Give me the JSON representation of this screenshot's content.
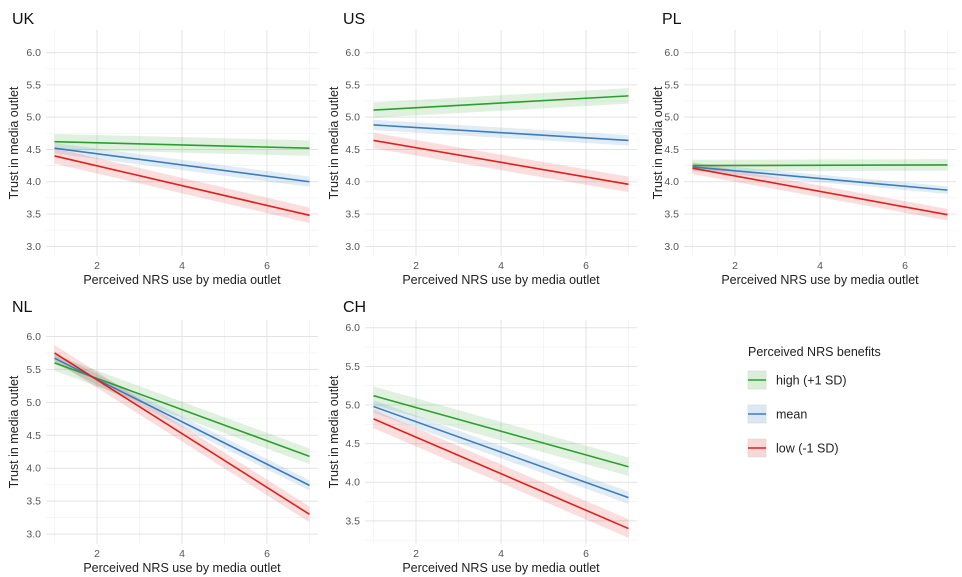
{
  "chart_data": {
    "type": "line",
    "legend": {
      "title": "Perceived NRS benefits",
      "placement": "right",
      "entries": [
        {
          "label": "high (+1 SD)",
          "color": "#2ca02c"
        },
        {
          "label": "mean",
          "color": "#3a7ebf"
        },
        {
          "label": "low (-1 SD)",
          "color": "#e0201b"
        }
      ]
    },
    "grid": true,
    "panels": [
      {
        "title": "UK",
        "xlabel": "Perceived NRS use by media outlet",
        "ylabel": "Trust in media outlet",
        "xlim": [
          0.8,
          7.2
        ],
        "ylim": [
          2.85,
          6.35
        ],
        "xticks": [
          2,
          4,
          6
        ],
        "xtick_labels": [
          "2",
          "4",
          "6"
        ],
        "yticks": [
          3.0,
          3.5,
          4.0,
          4.5,
          5.0,
          5.5,
          6.0
        ],
        "ytick_labels": [
          "3.0",
          "3.5",
          "4.0",
          "4.5",
          "5.0",
          "5.5",
          "6.0"
        ],
        "series": [
          {
            "name": "high (+1 SD)",
            "x": [
              1,
              7
            ],
            "y": [
              4.62,
              4.52
            ],
            "ci": 0.12
          },
          {
            "name": "mean",
            "x": [
              1,
              7
            ],
            "y": [
              4.52,
              4.0
            ],
            "ci": 0.08
          },
          {
            "name": "low (-1 SD)",
            "x": [
              1,
              7
            ],
            "y": [
              4.4,
              3.48
            ],
            "ci": 0.12
          }
        ]
      },
      {
        "title": "US",
        "xlabel": "Perceived NRS use by media outlet",
        "ylabel": "Trust in media outlet",
        "xlim": [
          0.8,
          7.2
        ],
        "ylim": [
          2.85,
          6.35
        ],
        "xticks": [
          2,
          4,
          6
        ],
        "xtick_labels": [
          "2",
          "4",
          "6"
        ],
        "yticks": [
          3.0,
          3.5,
          4.0,
          4.5,
          5.0,
          5.5,
          6.0
        ],
        "ytick_labels": [
          "3.0",
          "3.5",
          "4.0",
          "4.5",
          "5.0",
          "5.5",
          "6.0"
        ],
        "series": [
          {
            "name": "high (+1 SD)",
            "x": [
              1,
              7
            ],
            "y": [
              5.11,
              5.33
            ],
            "ci": 0.12
          },
          {
            "name": "mean",
            "x": [
              1,
              7
            ],
            "y": [
              4.88,
              4.64
            ],
            "ci": 0.08
          },
          {
            "name": "low (-1 SD)",
            "x": [
              1,
              7
            ],
            "y": [
              4.64,
              3.96
            ],
            "ci": 0.12
          }
        ]
      },
      {
        "title": "PL",
        "xlabel": "Perceived NRS use by media outlet",
        "ylabel": "Trust in media outlet",
        "xlim": [
          0.8,
          7.2
        ],
        "ylim": [
          2.85,
          6.35
        ],
        "xticks": [
          2,
          4,
          6
        ],
        "xtick_labels": [
          "2",
          "4",
          "6"
        ],
        "yticks": [
          3.0,
          3.5,
          4.0,
          4.5,
          5.0,
          5.5,
          6.0
        ],
        "ytick_labels": [
          "3.0",
          "3.5",
          "4.0",
          "4.5",
          "5.0",
          "5.5",
          "6.0"
        ],
        "series": [
          {
            "name": "high (+1 SD)",
            "x": [
              1,
              7
            ],
            "y": [
              4.25,
              4.26
            ],
            "ci": 0.09
          },
          {
            "name": "mean",
            "x": [
              1,
              7
            ],
            "y": [
              4.23,
              3.87
            ],
            "ci": 0.06
          },
          {
            "name": "low (-1 SD)",
            "x": [
              1,
              7
            ],
            "y": [
              4.21,
              3.49
            ],
            "ci": 0.09
          }
        ]
      },
      {
        "title": "NL",
        "xlabel": "Perceived NRS use by media outlet",
        "ylabel": "Trust in media outlet",
        "xlim": [
          0.8,
          7.2
        ],
        "ylim": [
          2.85,
          6.25
        ],
        "xticks": [
          2,
          4,
          6
        ],
        "xtick_labels": [
          "2",
          "4",
          "6"
        ],
        "yticks": [
          3.0,
          3.5,
          4.0,
          4.5,
          5.0,
          5.5,
          6.0
        ],
        "ytick_labels": [
          "3.0",
          "3.5",
          "4.0",
          "4.5",
          "5.0",
          "5.5",
          "6.0"
        ],
        "series": [
          {
            "name": "high (+1 SD)",
            "x": [
              1,
              7
            ],
            "y": [
              5.6,
              4.18
            ],
            "ci": 0.12
          },
          {
            "name": "mean",
            "x": [
              1,
              7
            ],
            "y": [
              5.67,
              3.74
            ],
            "ci": 0.08
          },
          {
            "name": "low (-1 SD)",
            "x": [
              1,
              7
            ],
            "y": [
              5.75,
              3.3
            ],
            "ci": 0.12
          }
        ]
      },
      {
        "title": "CH",
        "xlabel": "Perceived NRS use by media outlet",
        "ylabel": "Trust in media outlet",
        "xlim": [
          0.8,
          7.2
        ],
        "ylim": [
          3.2,
          6.1
        ],
        "xticks": [
          2,
          4,
          6
        ],
        "xtick_labels": [
          "2",
          "4",
          "6"
        ],
        "yticks": [
          3.5,
          4.0,
          4.5,
          5.0,
          5.5,
          6.0
        ],
        "ytick_labels": [
          "3.5",
          "4.0",
          "4.5",
          "5.0",
          "5.5",
          "6.0"
        ],
        "series": [
          {
            "name": "high (+1 SD)",
            "x": [
              1,
              7
            ],
            "y": [
              5.12,
              4.2
            ],
            "ci": 0.12
          },
          {
            "name": "mean",
            "x": [
              1,
              7
            ],
            "y": [
              4.98,
              3.8
            ],
            "ci": 0.08
          },
          {
            "name": "low (-1 SD)",
            "x": [
              1,
              7
            ],
            "y": [
              4.82,
              3.4
            ],
            "ci": 0.12
          }
        ]
      }
    ]
  }
}
